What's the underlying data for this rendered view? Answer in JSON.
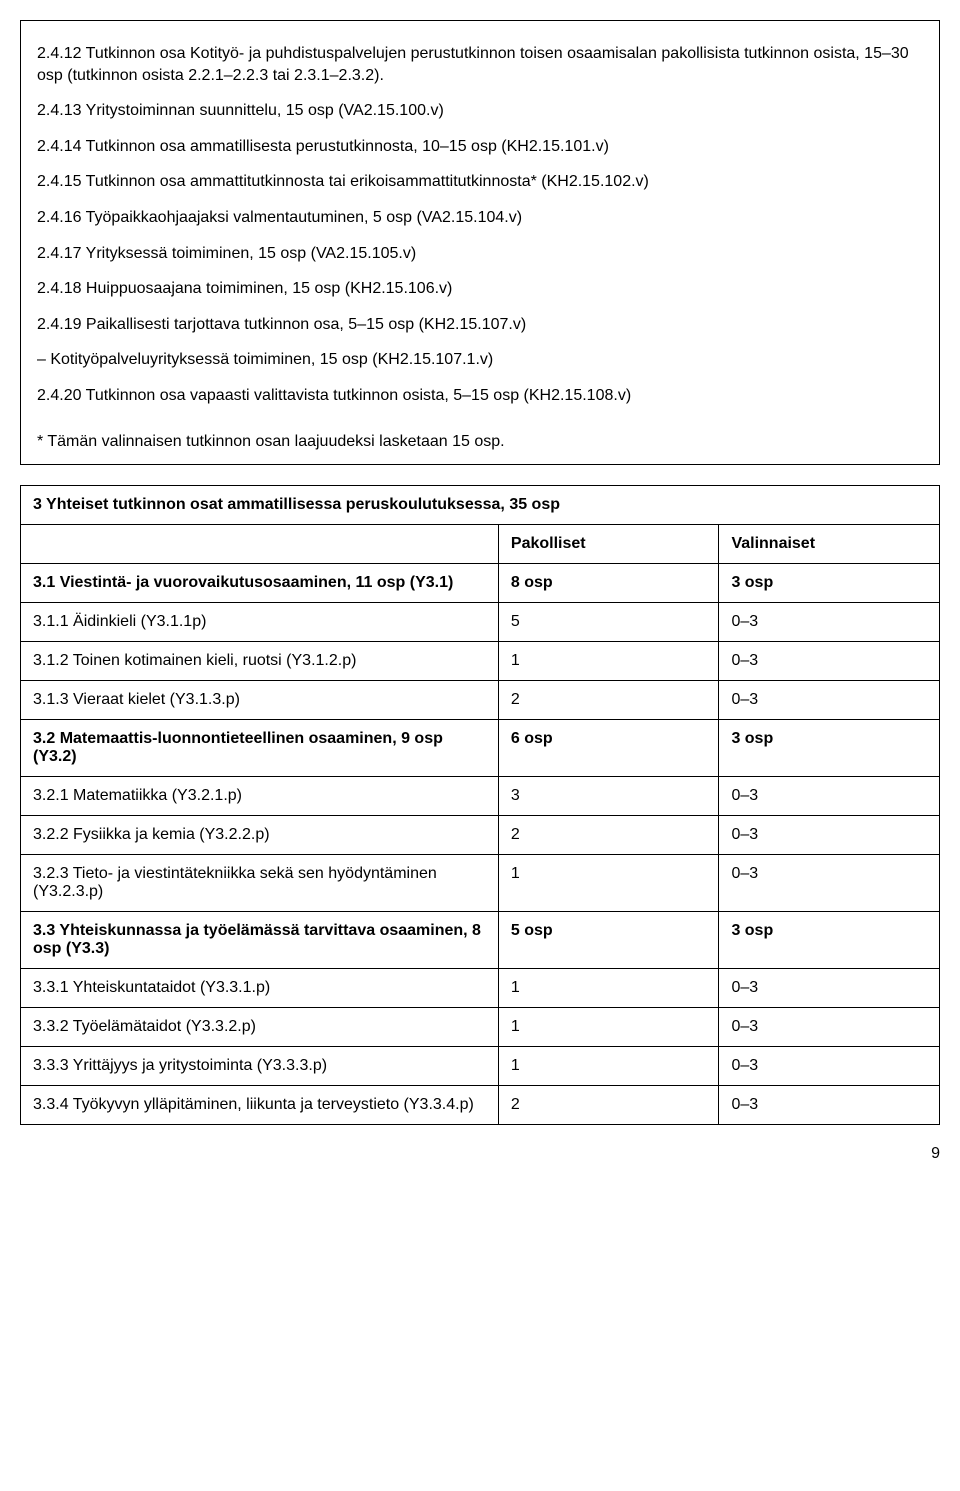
{
  "items": [
    "2.4.12 Tutkinnon osa Kotityö- ja puhdistuspalvelujen perustutkinnon toisen osaamisalan pakollisista tutkinnon osista, 15–30 osp (tutkinnon osista 2.2.1–2.2.3 tai 2.3.1–2.3.2).",
    "2.4.13 Yritystoiminnan suunnittelu, 15 osp (VA2.15.100.v)",
    "2.4.14 Tutkinnon osa ammatillisesta perustutkinnosta, 10–15 osp (KH2.15.101.v)",
    "2.4.15 Tutkinnon osa ammattitutkinnosta tai erikoisammattitutkinnosta* (KH2.15.102.v)",
    "2.4.16 Työpaikkaohjaajaksi valmentautuminen, 5 osp (VA2.15.104.v)",
    "2.4.17 Yrityksessä toimiminen, 15 osp (VA2.15.105.v)",
    "2.4.18 Huippuosaajana toimiminen, 15 osp (KH2.15.106.v)",
    "2.4.19 Paikallisesti tarjottava tutkinnon osa, 5–15 osp (KH2.15.107.v)",
    "– Kotityöpalveluyrityksessä toimiminen, 15 osp (KH2.15.107.1.v)",
    "2.4.20 Tutkinnon osa vapaasti valittavista tutkinnon osista, 5–15 osp (KH2.15.108.v)"
  ],
  "footnote": "* Tämän valinnaisen tutkinnon osan laajuudeksi lasketaan 15 osp.",
  "table": {
    "title": "3 Yhteiset tutkinnon osat ammatillisessa peruskoulutuksessa, 35 osp",
    "headers": [
      "",
      "Pakolliset",
      "Valinnaiset"
    ],
    "sections": [
      {
        "label": "3.1 Viestintä- ja vuorovaikutusosaaminen, 11 osp (Y3.1)",
        "pak": "8 osp",
        "val": "3 osp",
        "rows": [
          {
            "label": "3.1.1 Äidinkieli (Y3.1.1p)",
            "pak": "5",
            "val": "0–3"
          },
          {
            "label": "3.1.2 Toinen kotimainen kieli, ruotsi (Y3.1.2.p)",
            "pak": "1",
            "val": "0–3"
          },
          {
            "label": "3.1.3 Vieraat kielet (Y3.1.3.p)",
            "pak": "2",
            "val": "0–3"
          }
        ]
      },
      {
        "label": "3.2 Matemaattis-luonnontieteellinen osaaminen, 9 osp (Y3.2)",
        "pak": "6 osp",
        "val": "3 osp",
        "rows": [
          {
            "label": "3.2.1 Matematiikka (Y3.2.1.p)",
            "pak": "3",
            "val": "0–3"
          },
          {
            "label": "3.2.2 Fysiikka ja kemia (Y3.2.2.p)",
            "pak": "2",
            "val": "0–3"
          },
          {
            "label": "3.2.3 Tieto- ja viestintätekniikka sekä sen hyödyntäminen (Y3.2.3.p)",
            "pak": "1",
            "val": "0–3"
          }
        ]
      },
      {
        "label": "3.3 Yhteiskunnassa ja työelämässä tarvittava osaaminen, 8 osp (Y3.3)",
        "pak": "5 osp",
        "val": "3 osp",
        "rows": [
          {
            "label": "3.3.1 Yhteiskuntataidot (Y3.3.1.p)",
            "pak": "1",
            "val": "0–3"
          },
          {
            "label": "3.3.2 Työelämätaidot (Y3.3.2.p)",
            "pak": "1",
            "val": "0–3"
          },
          {
            "label": "3.3.3 Yrittäjyys ja yritystoiminta (Y3.3.3.p)",
            "pak": "1",
            "val": "0–3"
          },
          {
            "label": "3.3.4 Työkyvyn ylläpitäminen, liikunta ja terveystieto (Y3.3.4.p)",
            "pak": "2",
            "val": "0–3"
          }
        ]
      }
    ]
  },
  "pageNumber": "9"
}
